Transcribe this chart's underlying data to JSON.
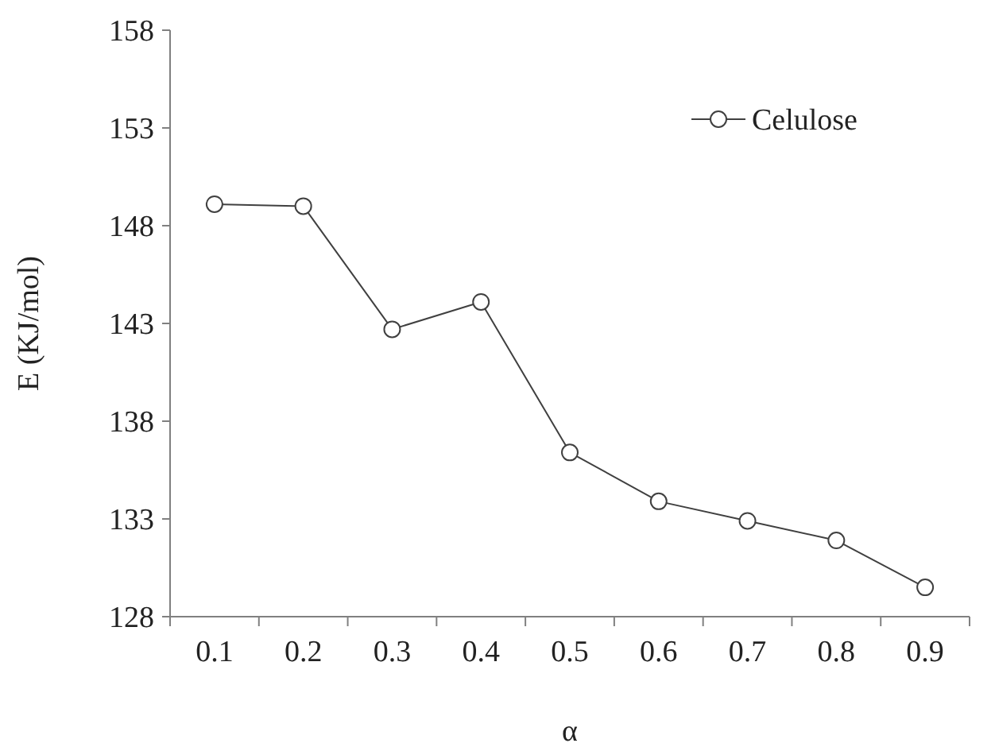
{
  "chart_data": {
    "type": "line",
    "xlabel": "α",
    "ylabel": "E (KJ/mol)",
    "categories": [
      "0.1",
      "0.2",
      "0.3",
      "0.4",
      "0.5",
      "0.6",
      "0.7",
      "0.8",
      "0.9"
    ],
    "series": [
      {
        "name": "Celulose",
        "color": "#404040",
        "values": [
          149.1,
          149.0,
          142.7,
          144.1,
          136.4,
          133.9,
          132.9,
          131.9,
          129.5
        ]
      }
    ],
    "ylim": [
      128,
      158
    ],
    "yticks": [
      128,
      133,
      138,
      143,
      148,
      153,
      158
    ],
    "marker": "circle",
    "legend": "top right",
    "grid": false
  }
}
